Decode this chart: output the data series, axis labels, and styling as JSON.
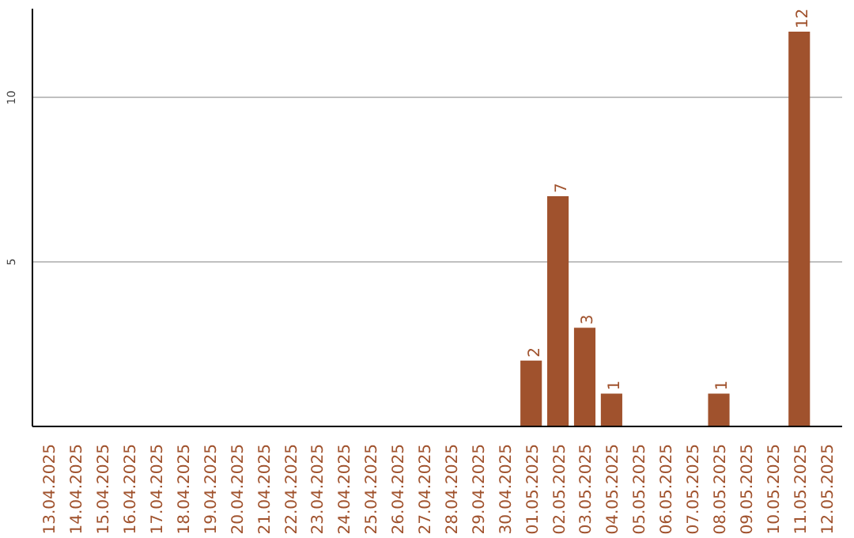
{
  "chart_data": {
    "type": "bar",
    "categories": [
      "13.04.2025",
      "14.04.2025",
      "15.04.2025",
      "16.04.2025",
      "17.04.2025",
      "18.04.2025",
      "19.04.2025",
      "20.04.2025",
      "21.04.2025",
      "22.04.2025",
      "23.04.2025",
      "24.04.2025",
      "25.04.2025",
      "26.04.2025",
      "27.04.2025",
      "28.04.2025",
      "29.04.2025",
      "30.04.2025",
      "01.05.2025",
      "02.05.2025",
      "03.05.2025",
      "04.05.2025",
      "05.05.2025",
      "06.05.2025",
      "07.05.2025",
      "08.05.2025",
      "09.05.2025",
      "10.05.2025",
      "11.05.2025",
      "12.05.2025"
    ],
    "values": [
      0,
      0,
      0,
      0,
      0,
      0,
      0,
      0,
      0,
      0,
      0,
      0,
      0,
      0,
      0,
      0,
      0,
      0,
      2,
      7,
      3,
      1,
      0,
      0,
      0,
      1,
      0,
      0,
      12,
      0
    ],
    "value_labels": [
      null,
      null,
      null,
      null,
      null,
      null,
      null,
      null,
      null,
      null,
      null,
      null,
      null,
      null,
      null,
      null,
      null,
      null,
      "2",
      "7",
      "3",
      "1",
      null,
      null,
      null,
      "1",
      null,
      null,
      "12",
      null
    ],
    "color": "#a0522d",
    "ylim": [
      0,
      12.7
    ],
    "yticks": [
      5,
      10
    ],
    "grid": "y"
  }
}
